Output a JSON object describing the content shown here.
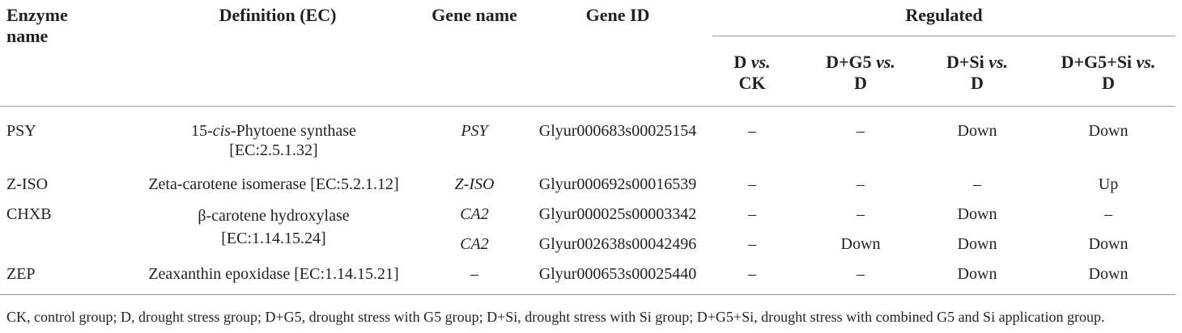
{
  "headers": {
    "enzyme_line1": "Enzyme",
    "enzyme_line2": "name",
    "definition": "Definition (EC)",
    "gene_name": "Gene name",
    "gene_id": "Gene ID",
    "regulated": "Regulated",
    "sub": [
      {
        "a": "D ",
        "b": "vs.",
        "c": "",
        "line2": "CK"
      },
      {
        "a": "D+G5 ",
        "b": "vs.",
        "c": "",
        "line2": "D"
      },
      {
        "a": "D+Si ",
        "b": "vs.",
        "c": "",
        "line2": "D"
      },
      {
        "a": "D+G5+Si ",
        "b": "vs.",
        "c": "",
        "line2": "D"
      }
    ]
  },
  "rows": [
    {
      "enzyme": "PSY",
      "def_pre": "15-",
      "def_it": "cis",
      "def_post": "-Phytoene synthase",
      "def_line2": "[EC:2.5.1.32]",
      "gene_name": "PSY",
      "gene_id": "Glyur000683s00025154",
      "reg": [
        "–",
        "–",
        "Down",
        "Down"
      ]
    },
    {
      "enzyme": "Z-ISO",
      "def_pre": "Zeta-carotene isomerase [EC:5.2.1.12]",
      "def_it": "",
      "def_post": "",
      "def_line2": "",
      "gene_name": "Z-ISO",
      "gene_id": "Glyur000692s00016539",
      "reg": [
        "–",
        "–",
        "–",
        "Up"
      ]
    },
    {
      "enzyme": "CHXB",
      "def_pre": "β-carotene hydroxylase",
      "def_it": "",
      "def_post": "",
      "def_line2": "[EC:1.14.15.24]",
      "gene_name": "CA2",
      "gene_id": "Glyur000025s00003342",
      "reg": [
        "–",
        "–",
        "Down",
        "–"
      ]
    },
    {
      "enzyme": "",
      "def_pre": "",
      "def_it": "",
      "def_post": "",
      "def_line2": "",
      "gene_name": "CA2",
      "gene_id": "Glyur002638s00042496",
      "reg": [
        "–",
        "Down",
        "Down",
        "Down"
      ]
    },
    {
      "enzyme": "ZEP",
      "def_pre": "Zeaxanthin epoxidase [EC:1.14.15.21]",
      "def_it": "",
      "def_post": "",
      "def_line2": "",
      "gene_name": "–",
      "gene_id": "Glyur000653s00025440",
      "reg": [
        "–",
        "–",
        "Down",
        "Down"
      ]
    }
  ],
  "footnote": "CK, control group; D, drought stress group; D+G5, drought stress with G5 group; D+Si, drought stress with Si group; D+G5+Si, drought stress with combined G5 and Si application group."
}
